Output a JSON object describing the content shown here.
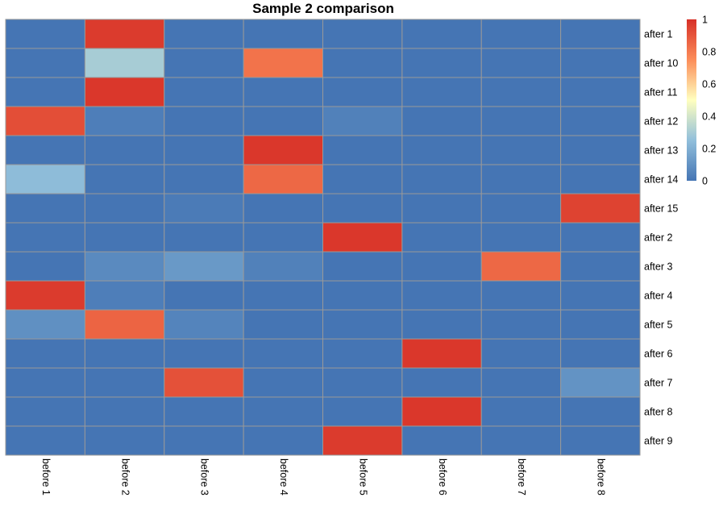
{
  "chart_data": {
    "type": "heatmap",
    "title": "Sample 2 comparison",
    "rows": [
      "after 1",
      "after 10",
      "after 11",
      "after 12",
      "after 13",
      "after 14",
      "after 15",
      "after 2",
      "after 3",
      "after 4",
      "after 5",
      "after 6",
      "after 7",
      "after 8",
      "after 9"
    ],
    "columns": [
      "before 1",
      "before 2",
      "before 3",
      "before 4",
      "before 5",
      "before 6",
      "before 7",
      "before 8"
    ],
    "values": [
      [
        0.0,
        0.97,
        0.0,
        0.0,
        0.0,
        0.0,
        0.0,
        0.0
      ],
      [
        0.0,
        0.3,
        0.0,
        0.82,
        0.0,
        0.0,
        0.0,
        0.0
      ],
      [
        0.0,
        0.98,
        0.0,
        0.0,
        0.0,
        0.0,
        0.0,
        0.0
      ],
      [
        0.92,
        0.03,
        0.0,
        0.0,
        0.04,
        0.0,
        0.0,
        0.0
      ],
      [
        0.0,
        0.0,
        0.0,
        0.98,
        0.0,
        0.0,
        0.0,
        0.0
      ],
      [
        0.24,
        0.0,
        0.0,
        0.85,
        0.0,
        0.0,
        0.0,
        0.0
      ],
      [
        0.0,
        0.0,
        0.02,
        0.0,
        0.0,
        0.0,
        0.0,
        0.95
      ],
      [
        0.0,
        0.0,
        0.0,
        0.0,
        0.98,
        0.0,
        0.0,
        0.0
      ],
      [
        0.0,
        0.07,
        0.12,
        0.04,
        0.0,
        0.0,
        0.85,
        0.0
      ],
      [
        0.97,
        0.03,
        0.0,
        0.0,
        0.0,
        0.0,
        0.0,
        0.0
      ],
      [
        0.09,
        0.86,
        0.05,
        0.0,
        0.0,
        0.0,
        0.0,
        0.0
      ],
      [
        0.0,
        0.0,
        0.0,
        0.0,
        0.0,
        0.98,
        0.0,
        0.0
      ],
      [
        0.0,
        0.0,
        0.91,
        0.0,
        0.0,
        0.0,
        0.0,
        0.1
      ],
      [
        0.0,
        0.0,
        0.0,
        0.0,
        0.0,
        0.98,
        0.0,
        0.0
      ],
      [
        0.0,
        0.0,
        0.0,
        0.0,
        0.97,
        0.0,
        0.0,
        0.0
      ]
    ],
    "color_scale": {
      "min": 0,
      "max": 1,
      "colors": [
        "#4575b4",
        "#91bfdb",
        "#ffffbf",
        "#fc8d59",
        "#d73027"
      ],
      "ticks": [
        0,
        0.2,
        0.4,
        0.6,
        0.8,
        1
      ],
      "tick_labels": [
        "0",
        "0.2",
        "0.4",
        "0.6",
        "0.8",
        "1"
      ]
    },
    "cell_border_color": "#999999",
    "legend_placement": "right"
  }
}
